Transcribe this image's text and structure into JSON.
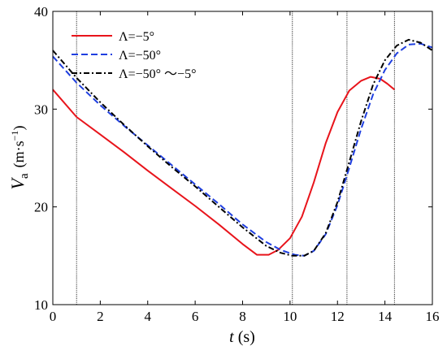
{
  "chart_data": {
    "type": "line",
    "xlabel_symbol": "t",
    "xlabel_unit": " (s)",
    "ylabel_symbol": "V",
    "ylabel_subscript": "a",
    "ylabel_unit": "(m·s",
    "ylabel_exp": "−1",
    "ylabel_close": ")",
    "xlim": [
      0,
      16
    ],
    "ylim": [
      10,
      40
    ],
    "x_ticks": [
      "0",
      "2",
      "4",
      "6",
      "8",
      "10",
      "12",
      "14",
      "16"
    ],
    "y_ticks": [
      "10",
      "20",
      "30",
      "40"
    ],
    "vlines": [
      1,
      10.1,
      12.4,
      14.4
    ],
    "legend_position": "top-left",
    "series": [
      {
        "name": "Λ=−5°",
        "color": "#e8141b",
        "style": "solid",
        "points": [
          [
            0,
            32
          ],
          [
            1,
            29.2
          ],
          [
            2,
            27.4
          ],
          [
            3,
            25.6
          ],
          [
            4,
            23.7
          ],
          [
            5,
            21.9
          ],
          [
            6,
            20.1
          ],
          [
            7,
            18.2
          ],
          [
            8,
            16.2
          ],
          [
            8.6,
            15.1
          ],
          [
            9.1,
            15.1
          ],
          [
            9.5,
            15.6
          ],
          [
            10,
            16.8
          ],
          [
            10.5,
            19
          ],
          [
            11,
            22.5
          ],
          [
            11.5,
            26.5
          ],
          [
            12,
            29.7
          ],
          [
            12.5,
            31.9
          ],
          [
            13,
            32.9
          ],
          [
            13.4,
            33.3
          ],
          [
            13.8,
            33.1
          ],
          [
            14.1,
            32.6
          ],
          [
            14.4,
            32
          ]
        ]
      },
      {
        "name": "Λ=−50°",
        "color": "#1f3fe0",
        "style": "dashed",
        "points": [
          [
            0,
            35.4
          ],
          [
            1,
            32.7
          ],
          [
            2,
            30.4
          ],
          [
            3,
            28.3
          ],
          [
            4,
            26.3
          ],
          [
            5,
            24.3
          ],
          [
            6,
            22.3
          ],
          [
            7,
            20.3
          ],
          [
            8,
            18.2
          ],
          [
            9,
            16.4
          ],
          [
            9.6,
            15.6
          ],
          [
            10.2,
            15.1
          ],
          [
            10.6,
            15
          ],
          [
            11,
            15.5
          ],
          [
            11.5,
            17.2
          ],
          [
            12,
            20.2
          ],
          [
            12.5,
            24
          ],
          [
            13,
            28
          ],
          [
            13.5,
            31.5
          ],
          [
            14,
            34
          ],
          [
            14.5,
            35.7
          ],
          [
            15,
            36.6
          ],
          [
            15.5,
            36.7
          ],
          [
            16,
            36.3
          ]
        ]
      },
      {
        "name": "Λ=−50° ～−5°",
        "color": "#000000",
        "style": "dashdot",
        "points": [
          [
            0,
            36
          ],
          [
            1,
            33.2
          ],
          [
            2,
            30.7
          ],
          [
            3,
            28.4
          ],
          [
            4,
            26.2
          ],
          [
            5,
            24.1
          ],
          [
            6,
            22.1
          ],
          [
            7,
            20
          ],
          [
            8,
            17.9
          ],
          [
            9,
            16
          ],
          [
            9.6,
            15.3
          ],
          [
            10.1,
            15
          ],
          [
            10.6,
            15
          ],
          [
            11,
            15.5
          ],
          [
            11.5,
            17.3
          ],
          [
            12,
            20.5
          ],
          [
            12.5,
            24.6
          ],
          [
            13,
            28.8
          ],
          [
            13.5,
            32.5
          ],
          [
            14,
            35
          ],
          [
            14.5,
            36.5
          ],
          [
            15,
            37.1
          ],
          [
            15.5,
            36.8
          ],
          [
            16,
            36
          ]
        ]
      }
    ]
  }
}
